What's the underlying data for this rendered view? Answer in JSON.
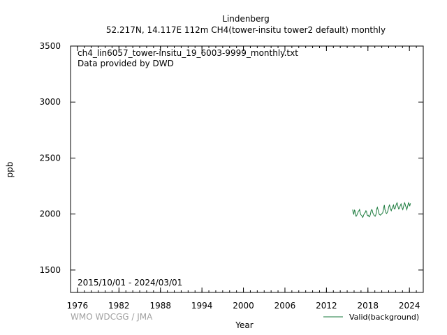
{
  "header": {
    "station": "Lindenberg",
    "subtitle": "52.217N, 14.117E 112m    CH4(tower-insitu tower2 default) monthly"
  },
  "plot": {
    "filename": "ch4_lin6057_tower-insitu_19_6003-9999_monthly.txt",
    "provider": "Data provided by DWD",
    "date_range": "2015/10/01 - 2024/03/01"
  },
  "footer": {
    "credit": "WMO WDCGG / JMA"
  },
  "colors": {
    "series": "#1a7a3c",
    "credit": "#a0a0a0"
  },
  "chart_data": {
    "type": "line",
    "title": "Lindenberg",
    "xlabel": "Year",
    "ylabel": "ppb",
    "xlim": [
      1975,
      2026
    ],
    "ylim": [
      1300,
      3500
    ],
    "xticks": [
      1976,
      1982,
      1988,
      1994,
      2000,
      2006,
      2012,
      2018,
      2024
    ],
    "yticks": [
      1500,
      2000,
      2500,
      3000,
      3500
    ],
    "legend_position": "bottom-right",
    "grid": false,
    "series": [
      {
        "name": "Valid(background)",
        "x": [
          2015.79,
          2015.87,
          2015.96,
          2016.04,
          2016.12,
          2016.21,
          2016.29,
          2016.37,
          2016.46,
          2016.54,
          2016.62,
          2016.71,
          2016.79,
          2016.87,
          2016.96,
          2017.04,
          2017.12,
          2017.21,
          2017.29,
          2017.37,
          2017.46,
          2017.54,
          2017.62,
          2017.71,
          2017.79,
          2017.87,
          2017.96,
          2018.04,
          2018.12,
          2018.21,
          2018.29,
          2018.37,
          2018.46,
          2018.54,
          2018.62,
          2018.71,
          2018.79,
          2018.87,
          2018.96,
          2019.04,
          2019.12,
          2019.21,
          2019.29,
          2019.37,
          2019.46,
          2019.54,
          2019.62,
          2019.71,
          2019.79,
          2019.87,
          2019.96,
          2020.04,
          2020.12,
          2020.21,
          2020.29,
          2020.37,
          2020.46,
          2020.54,
          2020.62,
          2020.71,
          2020.79,
          2020.87,
          2020.96,
          2021.04,
          2021.12,
          2021.21,
          2021.29,
          2021.37,
          2021.46,
          2021.54,
          2021.62,
          2021.71,
          2021.79,
          2021.87,
          2021.96,
          2022.04,
          2022.12,
          2022.21,
          2022.29,
          2022.37,
          2022.46,
          2022.54,
          2022.62,
          2022.71,
          2022.79,
          2022.87,
          2022.96,
          2023.04,
          2023.12,
          2023.21,
          2023.29,
          2023.37,
          2023.46,
          2023.54,
          2023.62,
          2023.71,
          2023.79,
          2023.87,
          2023.96,
          2024.04,
          2024.12,
          2024.17
        ],
        "values": [
          2040,
          2010,
          2000,
          2035,
          2030,
          1990,
          1980,
          1985,
          2000,
          2010,
          2025,
          2030,
          2040,
          2015,
          1995,
          1990,
          1985,
          1970,
          1975,
          1990,
          2000,
          2010,
          2015,
          2030,
          2025,
          1995,
          1985,
          1990,
          1980,
          1975,
          1985,
          2000,
          2030,
          2040,
          2035,
          2010,
          2000,
          1990,
          1985,
          1980,
          1990,
          2010,
          2050,
          2060,
          2040,
          2020,
          2000,
          1995,
          1990,
          1995,
          2000,
          2005,
          2010,
          2030,
          2060,
          2080,
          2040,
          2030,
          2010,
          2005,
          2015,
          2025,
          2050,
          2070,
          2080,
          2060,
          2040,
          2030,
          2045,
          2055,
          2070,
          2080,
          2050,
          2045,
          2055,
          2075,
          2090,
          2100,
          2080,
          2060,
          2045,
          2050,
          2065,
          2080,
          2090,
          2070,
          2050,
          2040,
          2060,
          2080,
          2100,
          2090,
          2070,
          2060,
          2040,
          2060,
          2080,
          2100,
          2090,
          2070,
          2090,
          2095
        ]
      }
    ]
  }
}
